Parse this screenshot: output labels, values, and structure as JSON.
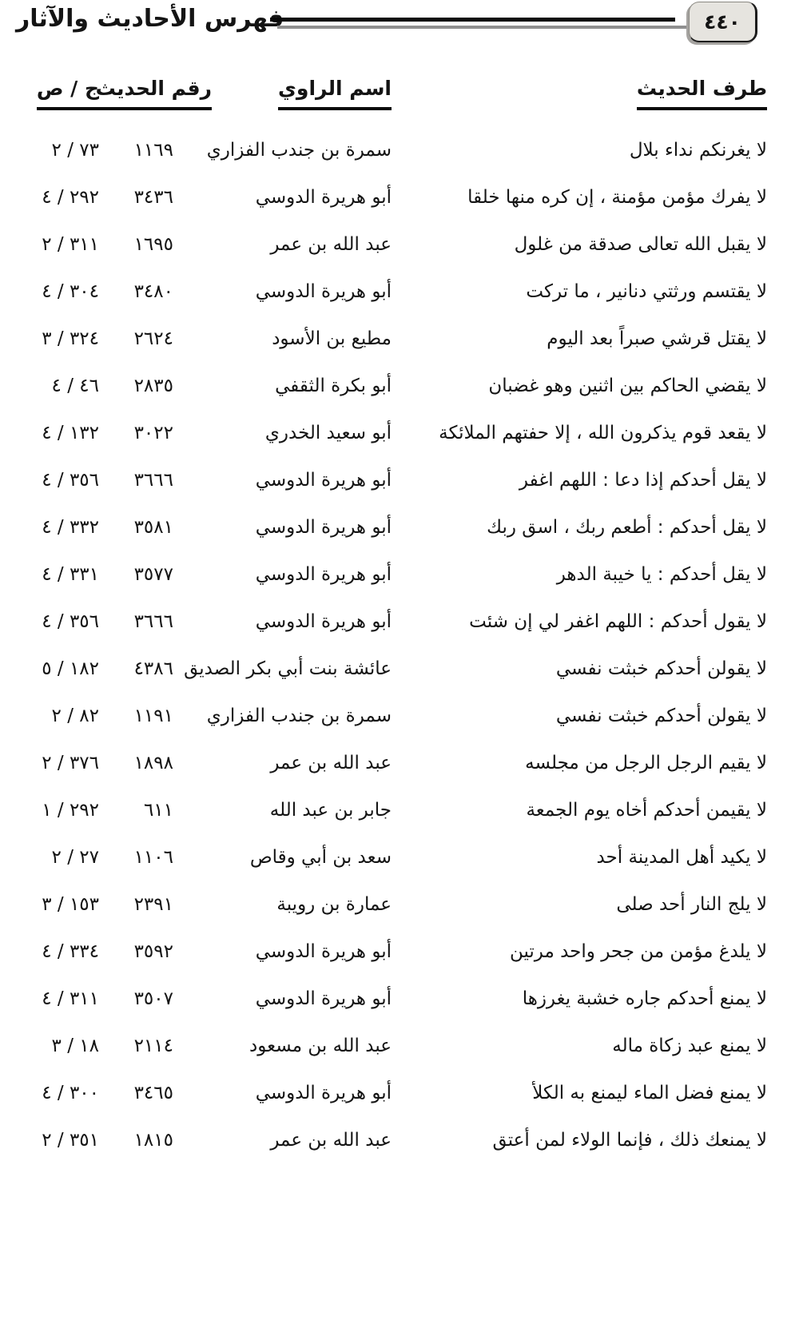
{
  "page": {
    "number": "٤٤٠",
    "title": "فهرس الأحاديث والآثار"
  },
  "table": {
    "headers": {
      "hadith": "طرف الحديث",
      "narrator": "اسم الراوي",
      "number": "رقم الحديث",
      "vol_page": "ج / ص"
    },
    "rows": [
      {
        "hadith": "لا يغرنكم نداء بلال",
        "narrator": "سمرة بن جندب الفزاري",
        "number": "١١٦٩",
        "vol_page": "٧٣ / ٢"
      },
      {
        "hadith": "لا يفرك مؤمن مؤمنة ، إن كره منها خلقا",
        "narrator": "أبو هريرة الدوسي",
        "number": "٣٤٣٦",
        "vol_page": "٢٩٢ / ٤"
      },
      {
        "hadith": "لا يقبل الله تعالى صدقة من غلول",
        "narrator": "عبد الله بن عمر",
        "number": "١٦٩٥",
        "vol_page": "٣١١ / ٢"
      },
      {
        "hadith": "لا يقتسم ورثتي دنانير ، ما تركت",
        "narrator": "أبو هريرة الدوسي",
        "number": "٣٤٨٠",
        "vol_page": "٣٠٤ / ٤"
      },
      {
        "hadith": "لا يقتل قرشي صبراً بعد اليوم",
        "narrator": "مطيع بن الأسود",
        "number": "٢٦٢٤",
        "vol_page": "٣٢٤ / ٣"
      },
      {
        "hadith": "لا يقضي الحاكم بين اثنين وهو غضبان",
        "narrator": "أبو بكرة الثقفي",
        "number": "٢٨٣٥",
        "vol_page": "٤٦ / ٤"
      },
      {
        "hadith": "لا يقعد قوم يذكرون الله ، إلا حفتهم الملائكة",
        "narrator": "أبو سعيد الخدري",
        "number": "٣٠٢٢",
        "vol_page": "١٣٢ / ٤"
      },
      {
        "hadith": "لا يقل أحدكم إذا دعا : اللهم اغفر",
        "narrator": "أبو هريرة الدوسي",
        "number": "٣٦٦٦",
        "vol_page": "٣٥٦ / ٤"
      },
      {
        "hadith": "لا يقل أحدكم : أطعم ربك ، اسق ربك",
        "narrator": "أبو هريرة الدوسي",
        "number": "٣٥٨١",
        "vol_page": "٣٣٢ / ٤"
      },
      {
        "hadith": "لا يقل أحدكم : يا خيبة الدهر",
        "narrator": "أبو هريرة الدوسي",
        "number": "٣٥٧٧",
        "vol_page": "٣٣١ / ٤"
      },
      {
        "hadith": "لا يقول أحدكم : اللهم اغفر لي إن شئت",
        "narrator": "أبو هريرة الدوسي",
        "number": "٣٦٦٦",
        "vol_page": "٣٥٦ / ٤"
      },
      {
        "hadith": "لا يقولن أحدكم خبثت نفسي",
        "narrator": "عائشة بنت أبي بكر الصديق",
        "number": "٤٣٨٦",
        "vol_page": "١٨٢ / ٥"
      },
      {
        "hadith": "لا يقولن أحدكم خبثت نفسي",
        "narrator": "سمرة بن جندب الفزاري",
        "number": "١١٩١",
        "vol_page": "٨٢ / ٢"
      },
      {
        "hadith": "لا يقيم الرجل الرجل من مجلسه",
        "narrator": "عبد الله بن عمر",
        "number": "١٨٩٨",
        "vol_page": "٣٧٦ / ٢"
      },
      {
        "hadith": "لا يقيمن أحدكم أخاه يوم الجمعة",
        "narrator": "جابر بن عبد الله",
        "number": "٦١١",
        "vol_page": "٢٩٢ / ١"
      },
      {
        "hadith": "لا يكيد أهل المدينة أحد",
        "narrator": "سعد بن أبي وقاص",
        "number": "١١٠٦",
        "vol_page": "٢٧ / ٢"
      },
      {
        "hadith": "لا يلج النار أحد صلى",
        "narrator": "عمارة بن رويبة",
        "number": "٢٣٩١",
        "vol_page": "١٥٣ / ٣"
      },
      {
        "hadith": "لا يلدغ مؤمن من جحر واحد مرتين",
        "narrator": "أبو هريرة الدوسي",
        "number": "٣٥٩٢",
        "vol_page": "٣٣٤ / ٤"
      },
      {
        "hadith": "لا يمنع أحدكم جاره خشبة يغرزها",
        "narrator": "أبو هريرة الدوسي",
        "number": "٣٥٠٧",
        "vol_page": "٣١١ / ٤"
      },
      {
        "hadith": "لا يمنع عبد زكاة ماله",
        "narrator": "عبد الله بن مسعود",
        "number": "٢١١٤",
        "vol_page": "١٨ / ٣"
      },
      {
        "hadith": "لا يمنع فضل الماء ليمنع به الكلأ",
        "narrator": "أبو هريرة الدوسي",
        "number": "٣٤٦٥",
        "vol_page": "٣٠٠ / ٤"
      },
      {
        "hadith": "لا يمنعك ذلك ، فإنما الولاء لمن أعتق",
        "narrator": "عبد الله بن عمر",
        "number": "١٨١٥",
        "vol_page": "٣٥١ / ٢"
      }
    ]
  }
}
